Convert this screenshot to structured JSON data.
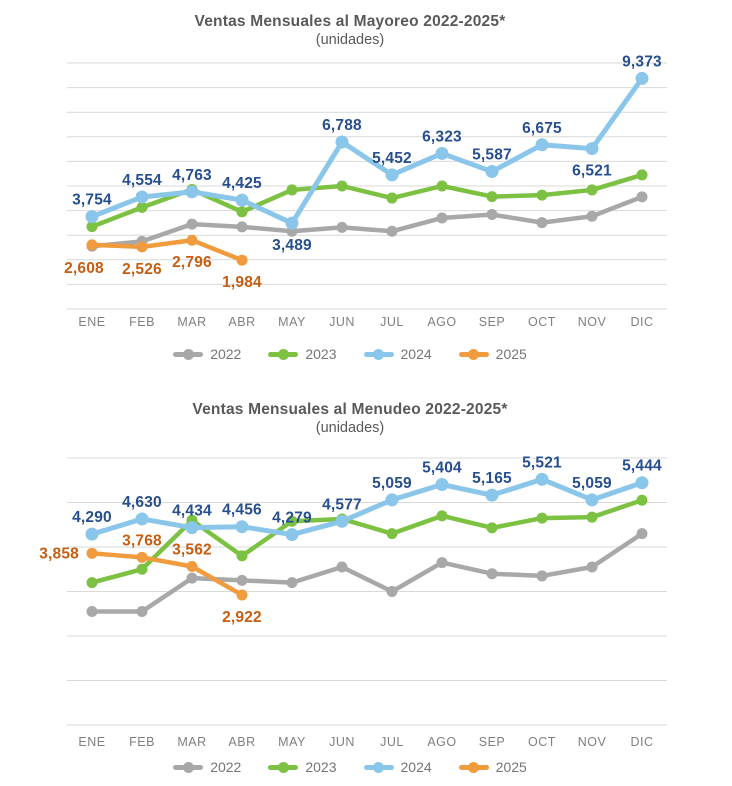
{
  "colors": {
    "grid": "#d9d9d9",
    "title_text": "#595959",
    "axis_text": "#7f7f7f",
    "legend_text": "#757575",
    "series_2022": "#a8a8a8",
    "series_2023": "#7cc142",
    "series_2024": "#8ac6ea",
    "series_2025": "#f09b3d",
    "label_2024": "#274f8f",
    "label_2025": "#c55e11"
  },
  "chart_data": [
    {
      "type": "line",
      "title": "Ventas Mensuales al Mayoreo 2022-2025*",
      "subtitle": "(unidades)",
      "categories": [
        "ENE",
        "FEB",
        "MAR",
        "ABR",
        "MAY",
        "JUN",
        "JUL",
        "AGO",
        "SEP",
        "OCT",
        "NOV",
        "DIC"
      ],
      "ylim": [
        0,
        10000
      ],
      "gridline_step": 1000,
      "grid": true,
      "legend_position": "bottom",
      "series": [
        {
          "name": "2022",
          "color": "#a8a8a8",
          "show_labels": false,
          "values": [
            2550,
            2750,
            3450,
            3340,
            3160,
            3320,
            3160,
            3700,
            3840,
            3510,
            3770,
            4560
          ]
        },
        {
          "name": "2023",
          "color": "#7cc142",
          "show_labels": false,
          "values": [
            3350,
            4130,
            4860,
            3950,
            4840,
            5000,
            4510,
            5000,
            4570,
            4630,
            4840,
            5450
          ]
        },
        {
          "name": "2024",
          "color": "#8ac6ea",
          "show_labels": true,
          "label_color": "#274f8f",
          "emphasis": true,
          "values": [
            3754,
            4554,
            4763,
            4425,
            3489,
            6788,
            5452,
            6323,
            5587,
            6675,
            6521,
            9373
          ],
          "label_sides": [
            "a",
            "a",
            "a",
            "a",
            "b",
            "a",
            "a",
            "a",
            "a",
            "a",
            "b",
            "a"
          ]
        },
        {
          "name": "2025",
          "color": "#f09b3d",
          "show_labels": true,
          "label_color": "#c55e11",
          "values": [
            2608,
            2526,
            2796,
            1984
          ],
          "label_sides": [
            "bl",
            "b",
            "b",
            "b"
          ]
        }
      ]
    },
    {
      "type": "line",
      "title": "Ventas Mensuales al Menudeo 2022-2025*",
      "subtitle": "(unidades)",
      "categories": [
        "ENE",
        "FEB",
        "MAR",
        "ABR",
        "MAY",
        "JUN",
        "JUL",
        "AGO",
        "SEP",
        "OCT",
        "NOV",
        "DIC"
      ],
      "ylim": [
        0,
        6000
      ],
      "gridline_step": 1000,
      "grid": true,
      "legend_position": "bottom",
      "series": [
        {
          "name": "2022",
          "color": "#a8a8a8",
          "show_labels": false,
          "values": [
            2550,
            2550,
            3300,
            3250,
            3200,
            3550,
            3000,
            3650,
            3400,
            3350,
            3550,
            4300
          ]
        },
        {
          "name": "2023",
          "color": "#7cc142",
          "show_labels": false,
          "values": [
            3200,
            3500,
            4600,
            3800,
            4580,
            4630,
            4300,
            4700,
            4430,
            4650,
            4670,
            5050
          ]
        },
        {
          "name": "2024",
          "color": "#8ac6ea",
          "show_labels": true,
          "label_color": "#274f8f",
          "emphasis": true,
          "values": [
            4290,
            4630,
            4434,
            4456,
            4279,
            4577,
            5059,
            5404,
            5165,
            5521,
            5059,
            5444
          ],
          "label_sides": [
            "a",
            "a",
            "a",
            "a",
            "a",
            "a",
            "a",
            "a",
            "a",
            "a",
            "a",
            "a"
          ]
        },
        {
          "name": "2025",
          "color": "#f09b3d",
          "show_labels": true,
          "label_color": "#c55e11",
          "values": [
            3858,
            3768,
            3562,
            2922
          ],
          "label_sides": [
            "l",
            "a",
            "a",
            "b"
          ]
        }
      ]
    }
  ]
}
